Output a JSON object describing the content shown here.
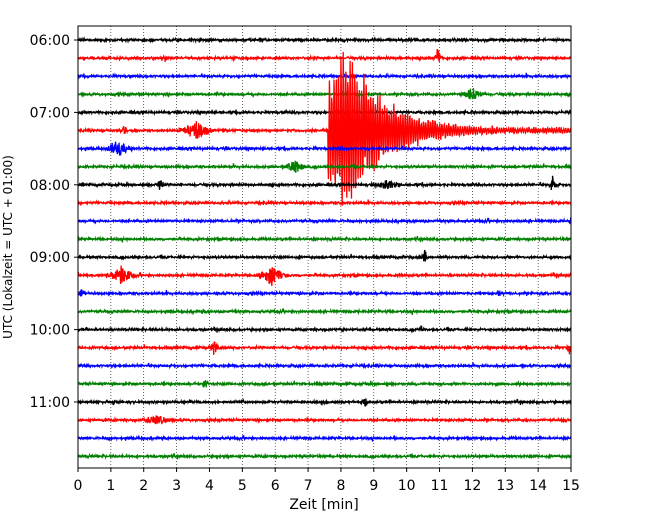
{
  "chart_data": {
    "type": "line",
    "title": "",
    "xlabel": "Zeit  [min]",
    "ylabel": "UTC (Lokalzeit = UTC + 01:00)",
    "xlim": [
      0,
      15
    ],
    "x_ticks": [
      "0",
      "1",
      "2",
      "3",
      "4",
      "5",
      "6",
      "7",
      "8",
      "9",
      "10",
      "11",
      "12",
      "13",
      "14",
      "15"
    ],
    "y_ticks": [
      "06:00",
      "07:00",
      "08:00",
      "09:00",
      "10:00",
      "11:00"
    ],
    "grid": "vertical dotted",
    "trace_interval_minutes": 15,
    "first_trace": "06:00",
    "last_trace": "11:45",
    "colors": [
      "#000000",
      "#ff0000",
      "#0000ff",
      "#008000"
    ],
    "traces": [
      {
        "time": "06:00",
        "color": "#000000"
      },
      {
        "time": "06:15",
        "color": "#ff0000"
      },
      {
        "time": "06:30",
        "color": "#0000ff"
      },
      {
        "time": "06:45",
        "color": "#008000"
      },
      {
        "time": "07:00",
        "color": "#000000"
      },
      {
        "time": "07:15",
        "color": "#ff0000"
      },
      {
        "time": "07:30",
        "color": "#0000ff"
      },
      {
        "time": "07:45",
        "color": "#008000"
      },
      {
        "time": "08:00",
        "color": "#000000"
      },
      {
        "time": "08:15",
        "color": "#ff0000"
      },
      {
        "time": "08:30",
        "color": "#0000ff"
      },
      {
        "time": "08:45",
        "color": "#008000"
      },
      {
        "time": "09:00",
        "color": "#000000"
      },
      {
        "time": "09:15",
        "color": "#ff0000"
      },
      {
        "time": "09:30",
        "color": "#0000ff"
      },
      {
        "time": "09:45",
        "color": "#008000"
      },
      {
        "time": "10:00",
        "color": "#000000"
      },
      {
        "time": "10:15",
        "color": "#ff0000"
      },
      {
        "time": "10:30",
        "color": "#0000ff"
      },
      {
        "time": "10:45",
        "color": "#008000"
      },
      {
        "time": "11:00",
        "color": "#000000"
      },
      {
        "time": "11:15",
        "color": "#ff0000"
      },
      {
        "time": "11:30",
        "color": "#0000ff"
      },
      {
        "time": "11:45",
        "color": "#008000"
      }
    ],
    "events": [
      {
        "trace": "06:15",
        "minute": 2.65,
        "amp": 0.45,
        "dur": 0.05
      },
      {
        "trace": "06:15",
        "minute": 10.95,
        "amp": 1.2,
        "dur": 0.05
      },
      {
        "trace": "06:45",
        "minute": 12.0,
        "amp": 0.8,
        "dur": 0.25
      },
      {
        "trace": "07:15",
        "minute": 1.4,
        "amp": 0.7,
        "dur": 0.05
      },
      {
        "trace": "07:15",
        "minute": 3.6,
        "amp": 1.0,
        "dur": 0.5
      },
      {
        "trace": "07:15",
        "minute": 12.6,
        "amp": 0.45,
        "dur": 0.1
      },
      {
        "trace": "07:30",
        "minute": 1.2,
        "amp": 1.0,
        "dur": 0.35
      },
      {
        "trace": "07:45",
        "minute": 6.6,
        "amp": 0.9,
        "dur": 0.25
      },
      {
        "trace": "08:00",
        "minute": 2.5,
        "amp": 0.9,
        "dur": 0.05
      },
      {
        "trace": "08:00",
        "minute": 9.4,
        "amp": 0.6,
        "dur": 0.4
      },
      {
        "trace": "08:00",
        "minute": 14.45,
        "amp": 1.2,
        "dur": 0.05
      },
      {
        "trace": "08:30",
        "minute": 15.0,
        "amp": 0.6,
        "dur": 0.05
      },
      {
        "trace": "09:00",
        "minute": 10.55,
        "amp": 0.9,
        "dur": 0.05
      },
      {
        "trace": "09:15",
        "minute": 1.3,
        "amp": 1.1,
        "dur": 0.35
      },
      {
        "trace": "09:15",
        "minute": 5.9,
        "amp": 1.1,
        "dur": 0.4
      },
      {
        "trace": "09:30",
        "minute": 0.1,
        "amp": 0.9,
        "dur": 0.05
      },
      {
        "trace": "09:30",
        "minute": 12.8,
        "amp": 0.6,
        "dur": 0.05
      },
      {
        "trace": "10:00",
        "minute": 10.45,
        "amp": 0.6,
        "dur": 0.05
      },
      {
        "trace": "10:15",
        "minute": 4.15,
        "amp": 0.9,
        "dur": 0.1
      },
      {
        "trace": "10:15",
        "minute": 14.95,
        "amp": 0.8,
        "dur": 0.05
      },
      {
        "trace": "10:45",
        "minute": 3.85,
        "amp": 0.8,
        "dur": 0.05
      },
      {
        "trace": "11:00",
        "minute": 8.75,
        "amp": 0.6,
        "dur": 0.05
      },
      {
        "trace": "11:15",
        "minute": 2.4,
        "amp": 0.7,
        "dur": 0.35
      }
    ],
    "earthquake": {
      "trace": "07:15",
      "start_minute": 7.6,
      "peak_minute": 8.15
    }
  }
}
